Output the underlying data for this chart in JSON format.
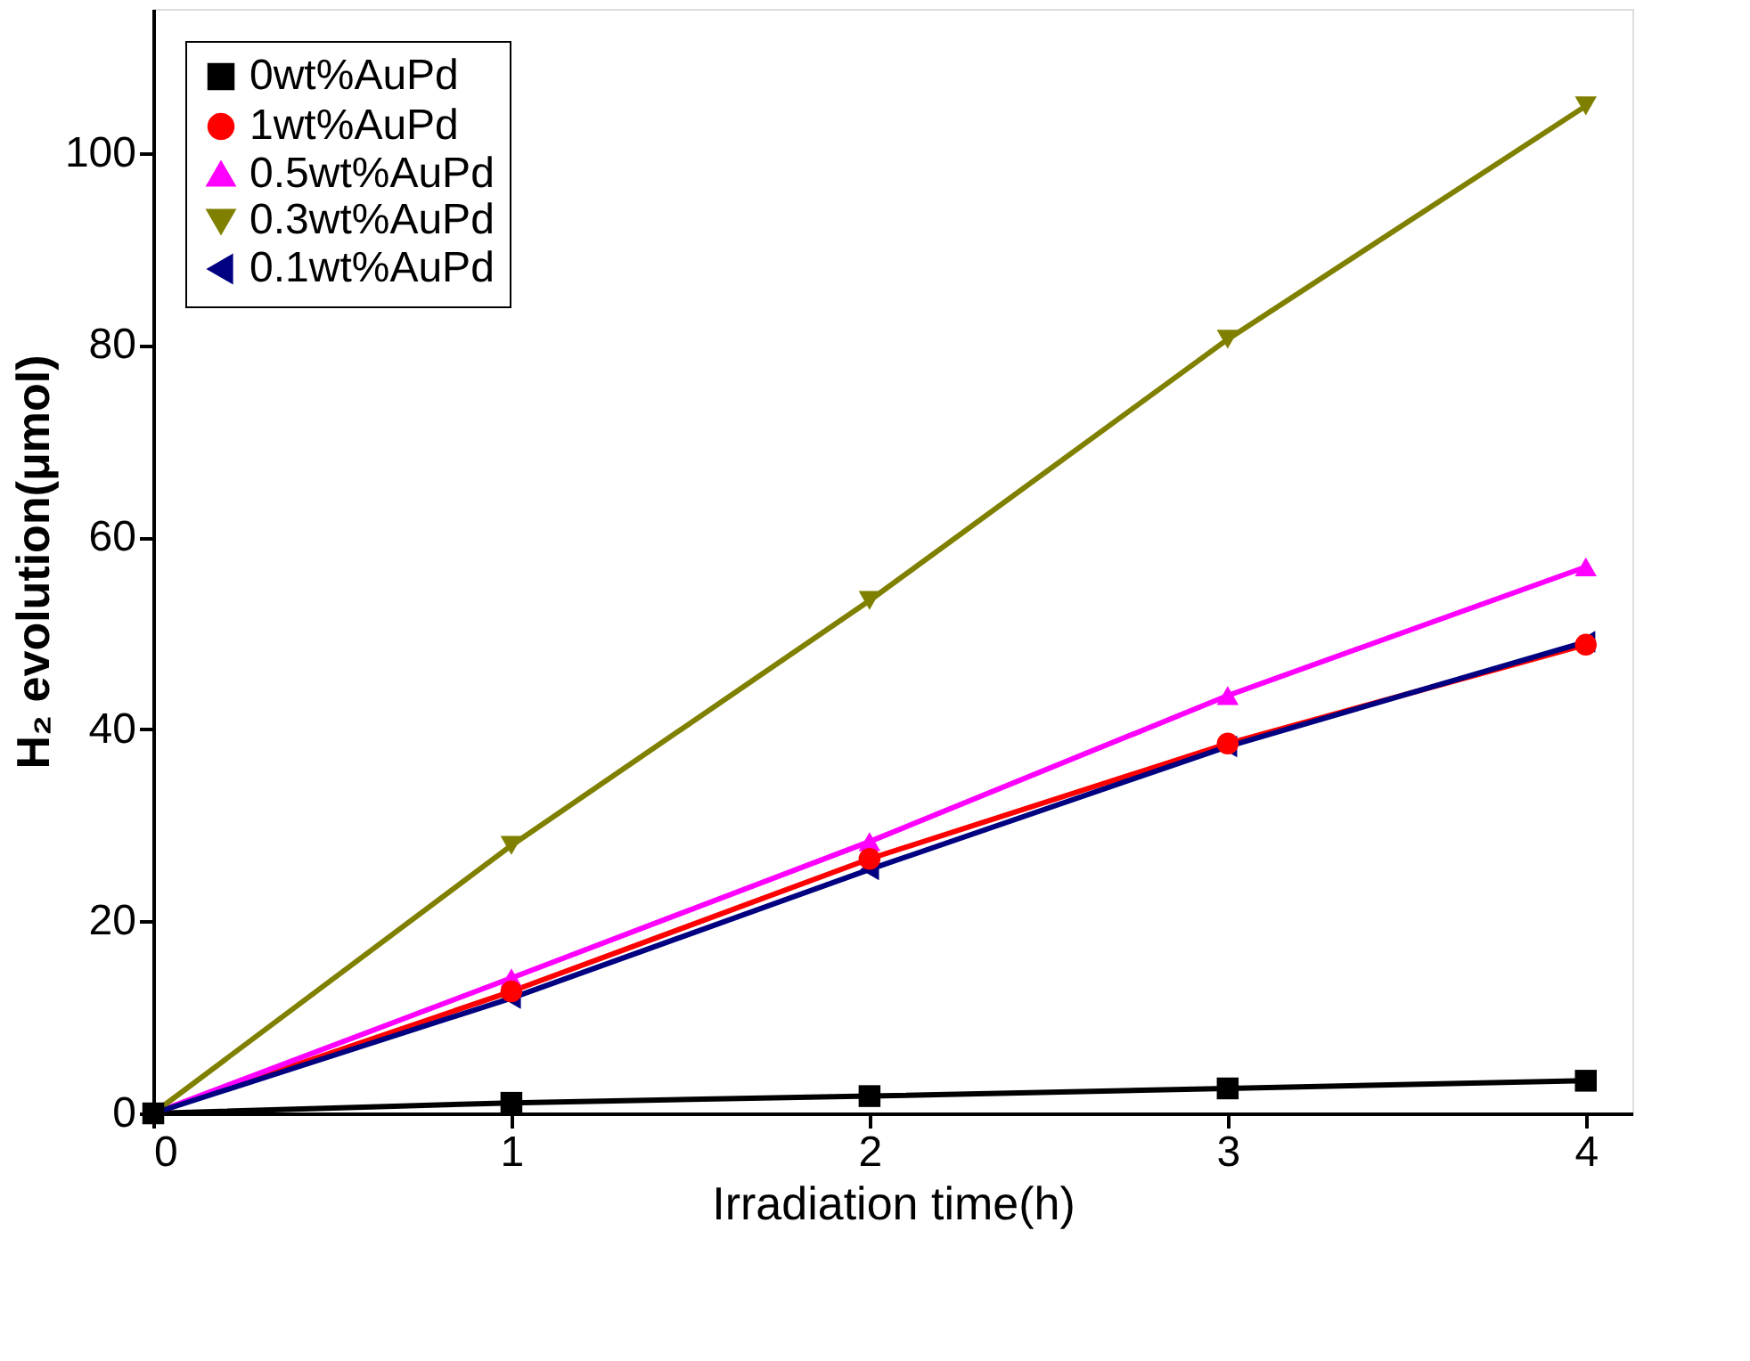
{
  "chart_data": {
    "type": "line",
    "xlabel": "Irradiation time(h)",
    "ylabel": "H₂ evolution(μmol)",
    "x": [
      0,
      1,
      2,
      3,
      4
    ],
    "series": [
      {
        "name": "0wt%AuPd",
        "color": "#000000",
        "marker": "square",
        "values": [
          0,
          1.1,
          1.8,
          2.6,
          3.4
        ]
      },
      {
        "name": "1wt%AuPd",
        "color": "#ff0000",
        "marker": "circle",
        "values": [
          0,
          12.7,
          26.5,
          38.5,
          48.8
        ]
      },
      {
        "name": "0.5wt%AuPd",
        "color": "#ff00ff",
        "marker": "triangle-up",
        "values": [
          0,
          14.1,
          28.3,
          43.5,
          56.9
        ]
      },
      {
        "name": "0.3wt%AuPd",
        "color": "#808000",
        "marker": "triangle-down",
        "values": [
          0,
          27.9,
          53.4,
          80.6,
          104.9
        ]
      },
      {
        "name": "0.1wt%AuPd",
        "color": "#000080",
        "marker": "triangle-left",
        "values": [
          0,
          12,
          25.4,
          38.2,
          49.1
        ]
      }
    ],
    "xlim": [
      0,
      4.13
    ],
    "xticks": [
      0,
      1,
      2,
      3,
      4
    ],
    "ylim": [
      0,
      115
    ],
    "yticks": [
      0,
      20,
      40,
      60,
      80,
      100
    ],
    "grid": false,
    "legend": "top left",
    "line_style": "solid"
  }
}
